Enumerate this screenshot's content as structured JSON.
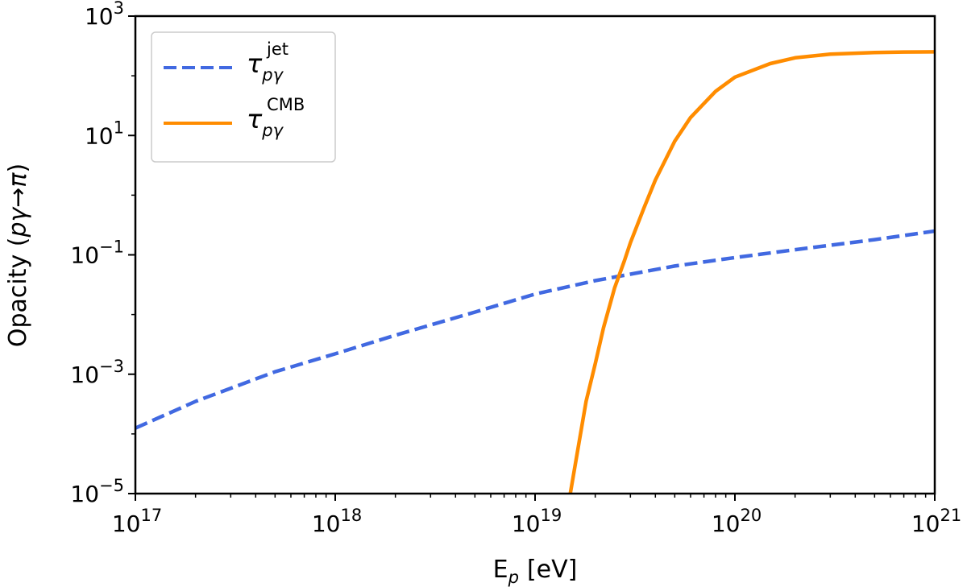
{
  "chart_data": {
    "type": "line",
    "x_scale": "log",
    "y_scale": "log",
    "xlabel": {
      "base": "E",
      "sub": "p",
      "unit": "[eV]"
    },
    "ylabel": {
      "prefix": "Opacity (",
      "expr": "pγ→π",
      "suffix": ")"
    },
    "xlim": [
      1e+17,
      1e+21
    ],
    "ylim": [
      1e-05,
      1000.0
    ],
    "x_ticks": [
      {
        "value": 1e+17,
        "base": "10",
        "exp": "17"
      },
      {
        "value": 1e+18,
        "base": "10",
        "exp": "18"
      },
      {
        "value": 1e+19,
        "base": "10",
        "exp": "19"
      },
      {
        "value": 1e+20,
        "base": "10",
        "exp": "20"
      },
      {
        "value": 1e+21,
        "base": "10",
        "exp": "21"
      }
    ],
    "y_ticks": [
      {
        "value": 1e-05,
        "base": "10",
        "exp": "−5"
      },
      {
        "value": 0.001,
        "base": "10",
        "exp": "−3"
      },
      {
        "value": 0.1,
        "base": "10",
        "exp": "−1"
      },
      {
        "value": 10.0,
        "base": "10",
        "exp": "1"
      },
      {
        "value": 1000.0,
        "base": "10",
        "exp": "3"
      }
    ],
    "legend_position": "upper-left",
    "series": [
      {
        "name": "tau_pgamma_jet",
        "label": {
          "symbol": "τ",
          "sub": "pγ",
          "sup": "jet"
        },
        "color": "#4169E1",
        "style": "dashed",
        "x": [
          1e+17,
          2e+17,
          5e+17,
          1e+18,
          2e+18,
          5e+18,
          1e+19,
          2e+19,
          5e+19,
          1e+20,
          2e+20,
          5e+20,
          1e+21
        ],
        "y": [
          0.000125,
          0.00035,
          0.0011,
          0.0022,
          0.0045,
          0.011,
          0.022,
          0.037,
          0.065,
          0.09,
          0.122,
          0.18,
          0.25
        ]
      },
      {
        "name": "tau_pgamma_cmb",
        "label": {
          "symbol": "τ",
          "sub": "pγ",
          "sup": "CMB"
        },
        "color": "#FF8C00",
        "style": "solid",
        "x": [
          1.5e+19,
          1.8e+19,
          2e+19,
          2.2e+19,
          2.5e+19,
          2.8e+19,
          3e+19,
          3.5e+19,
          4e+19,
          5e+19,
          6e+19,
          8e+19,
          1e+20,
          1.5e+20,
          2e+20,
          3e+20,
          5e+20,
          7e+20,
          1e+21
        ],
        "y": [
          1e-05,
          0.00035,
          0.0015,
          0.006,
          0.028,
          0.08,
          0.16,
          0.6,
          1.8,
          8,
          20,
          55,
          95,
          160,
          200,
          230,
          245,
          250,
          252
        ]
      }
    ]
  }
}
